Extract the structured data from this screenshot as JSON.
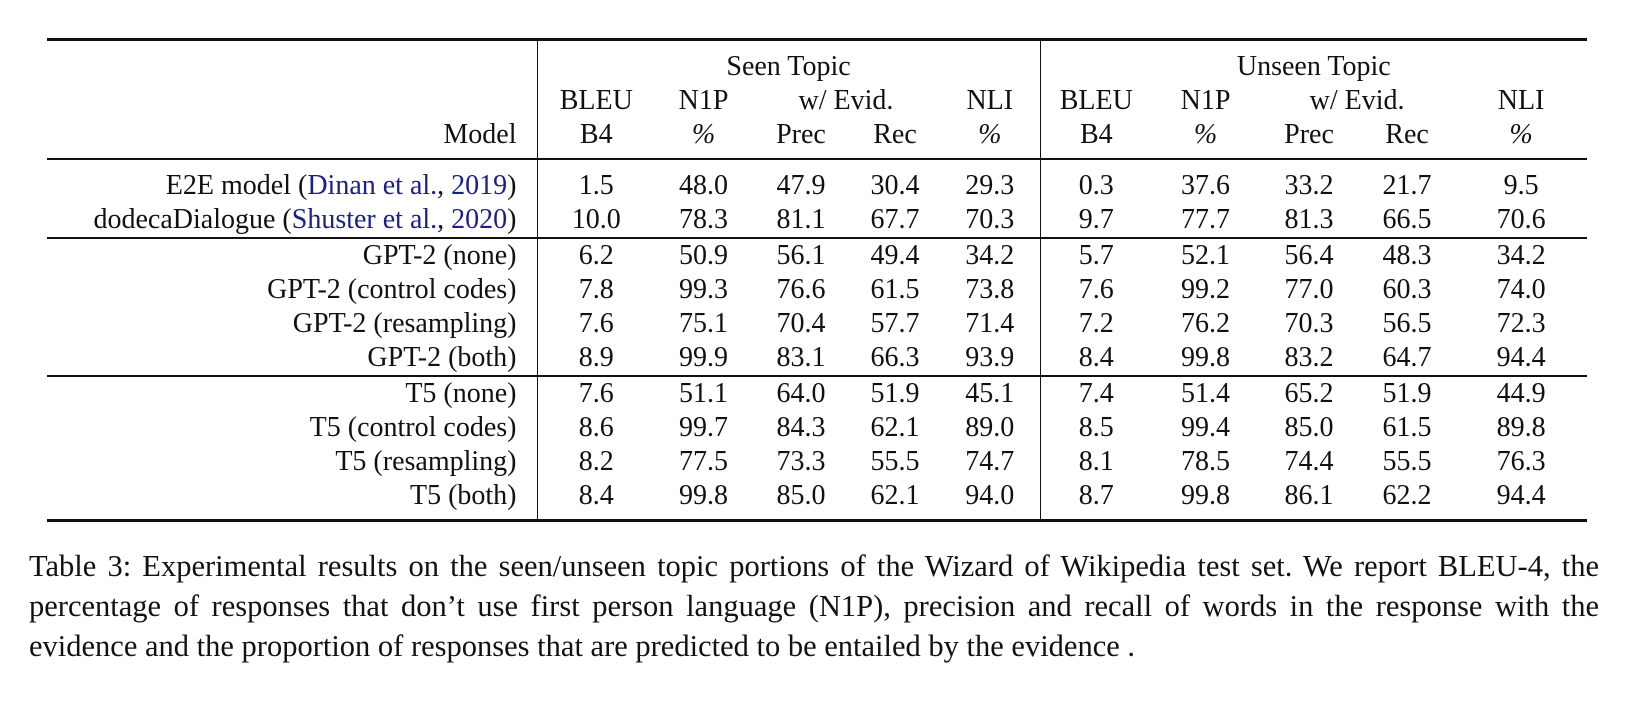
{
  "table": {
    "group_headers": {
      "seen": "Seen Topic",
      "unseen": "Unseen Topic"
    },
    "subheaders": {
      "bleu": "BLEU",
      "n1p": "N1P",
      "evid": "w/ Evid.",
      "nli": "NLI",
      "b4": "B4",
      "pct": "%",
      "prec": "Prec",
      "rec": "Rec",
      "model": "Model"
    },
    "rows": [
      {
        "model_prefix": "E2E model (",
        "cite_author": "Dinan et al.",
        "cite_sep": ", ",
        "cite_year": "2019",
        "model_suffix": ")",
        "values": [
          "1.5",
          "48.0",
          "47.9",
          "30.4",
          "29.3",
          "0.3",
          "37.6",
          "33.2",
          "21.7",
          "9.5"
        ]
      },
      {
        "model_prefix": "dodecaDialogue (",
        "cite_author": "Shuster et al.",
        "cite_sep": ", ",
        "cite_year": "2020",
        "model_suffix": ")",
        "values": [
          "10.0",
          "78.3",
          "81.1",
          "67.7",
          "70.3",
          "9.7",
          "77.7",
          "81.3",
          "66.5",
          "70.6"
        ]
      },
      {
        "model": "GPT-2 (none)",
        "values": [
          "6.2",
          "50.9",
          "56.1",
          "49.4",
          "34.2",
          "5.7",
          "52.1",
          "56.4",
          "48.3",
          "34.2"
        ]
      },
      {
        "model": "GPT-2 (control codes)",
        "values": [
          "7.8",
          "99.3",
          "76.6",
          "61.5",
          "73.8",
          "7.6",
          "99.2",
          "77.0",
          "60.3",
          "74.0"
        ]
      },
      {
        "model": "GPT-2 (resampling)",
        "values": [
          "7.6",
          "75.1",
          "70.4",
          "57.7",
          "71.4",
          "7.2",
          "76.2",
          "70.3",
          "56.5",
          "72.3"
        ]
      },
      {
        "model": "GPT-2 (both)",
        "values": [
          "8.9",
          "99.9",
          "83.1",
          "66.3",
          "93.9",
          "8.4",
          "99.8",
          "83.2",
          "64.7",
          "94.4"
        ]
      },
      {
        "model": "T5 (none)",
        "values": [
          "7.6",
          "51.1",
          "64.0",
          "51.9",
          "45.1",
          "7.4",
          "51.4",
          "65.2",
          "51.9",
          "44.9"
        ]
      },
      {
        "model": "T5 (control codes)",
        "values": [
          "8.6",
          "99.7",
          "84.3",
          "62.1",
          "89.0",
          "8.5",
          "99.4",
          "85.0",
          "61.5",
          "89.8"
        ]
      },
      {
        "model": "T5 (resampling)",
        "values": [
          "8.2",
          "77.5",
          "73.3",
          "55.5",
          "74.7",
          "8.1",
          "78.5",
          "74.4",
          "55.5",
          "76.3"
        ]
      },
      {
        "model": "T5 (both)",
        "values": [
          "8.4",
          "99.8",
          "85.0",
          "62.1",
          "94.0",
          "8.7",
          "99.8",
          "86.1",
          "62.2",
          "94.4"
        ]
      }
    ]
  },
  "caption": {
    "text": "Table 3: Experimental results on the seen/unseen topic portions of the Wizard of Wikipedia test set. We report BLEU-4, the percentage of responses that don’t use first person language (N1P), precision and recall of words in the response with the evidence and the proportion of responses that are predicted to be entailed by the evidence ."
  },
  "colors": {
    "citation_link": "#1a1f8a",
    "text": "#111111"
  }
}
